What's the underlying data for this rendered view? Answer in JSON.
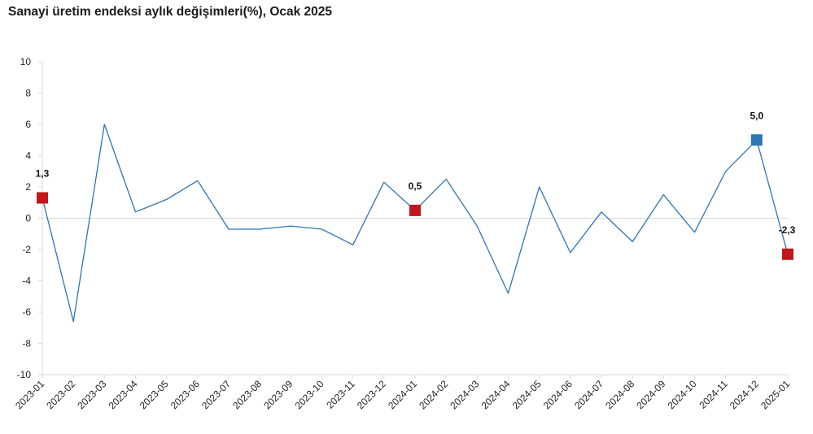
{
  "title": "Sanayi üretim endeksi aylık değişimleri(%), Ocak 2025",
  "chart_data": {
    "type": "line",
    "title": "Sanayi üretim endeksi aylık değişimleri(%), Ocak 2025",
    "xlabel": "",
    "ylabel": "",
    "ylim": [
      -10,
      10
    ],
    "y_ticks": [
      -10,
      -8,
      -6,
      -4,
      -2,
      0,
      2,
      4,
      6,
      8,
      10
    ],
    "grid": false,
    "legend": "none",
    "categories": [
      "2023-01",
      "2023-02",
      "2023-03",
      "2023-04",
      "2023-05",
      "2023-06",
      "2023-07",
      "2023-08",
      "2023-09",
      "2023-10",
      "2023-11",
      "2023-12",
      "2024-01",
      "2024-02",
      "2024-03",
      "2024-04",
      "2024-05",
      "2024-06",
      "2024-07",
      "2024-08",
      "2024-09",
      "2024-10",
      "2024-11",
      "2024-12",
      "2025-01"
    ],
    "series": [
      {
        "color": "#2e75b6",
        "values": [
          1.3,
          -6.6,
          6.0,
          0.4,
          1.2,
          2.4,
          -0.7,
          -0.7,
          -0.5,
          -0.7,
          -1.7,
          2.3,
          0.5,
          2.5,
          -0.5,
          -4.8,
          2.0,
          -2.2,
          0.4,
          -1.5,
          1.5,
          -0.9,
          3.0,
          5.0,
          -2.3
        ]
      }
    ],
    "highlighted_points": [
      {
        "category": "2023-01",
        "value": 1.3,
        "label": "1,3",
        "color": "#c0161c"
      },
      {
        "category": "2024-01",
        "value": 0.5,
        "label": "0,5",
        "color": "#c0161c"
      },
      {
        "category": "2024-12",
        "value": 5.0,
        "label": "5,0",
        "color": "#2e75b6"
      },
      {
        "category": "2025-01",
        "value": -2.3,
        "label": "-2,3",
        "color": "#c0161c"
      }
    ],
    "colors": {
      "line": "#2e75b6",
      "axis": "#d9d9d9",
      "zero_line": "#d9d9d9"
    }
  }
}
